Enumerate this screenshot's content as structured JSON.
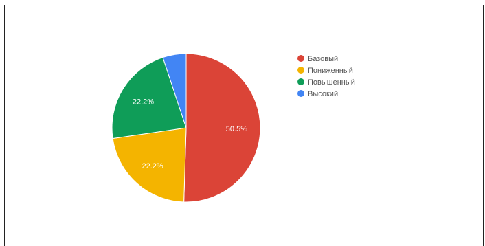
{
  "chart_data": {
    "type": "pie",
    "categories": [
      "Базовый",
      "Пониженный",
      "Повышенный",
      "Высокий"
    ],
    "values": [
      50.5,
      22.2,
      22.2,
      5.1
    ],
    "data_labels": [
      "50.5%",
      "22.2%",
      "22.2%",
      ""
    ],
    "colors": [
      "#db4437",
      "#f4b400",
      "#0f9d58",
      "#4285f4"
    ],
    "legend_position": "right"
  }
}
